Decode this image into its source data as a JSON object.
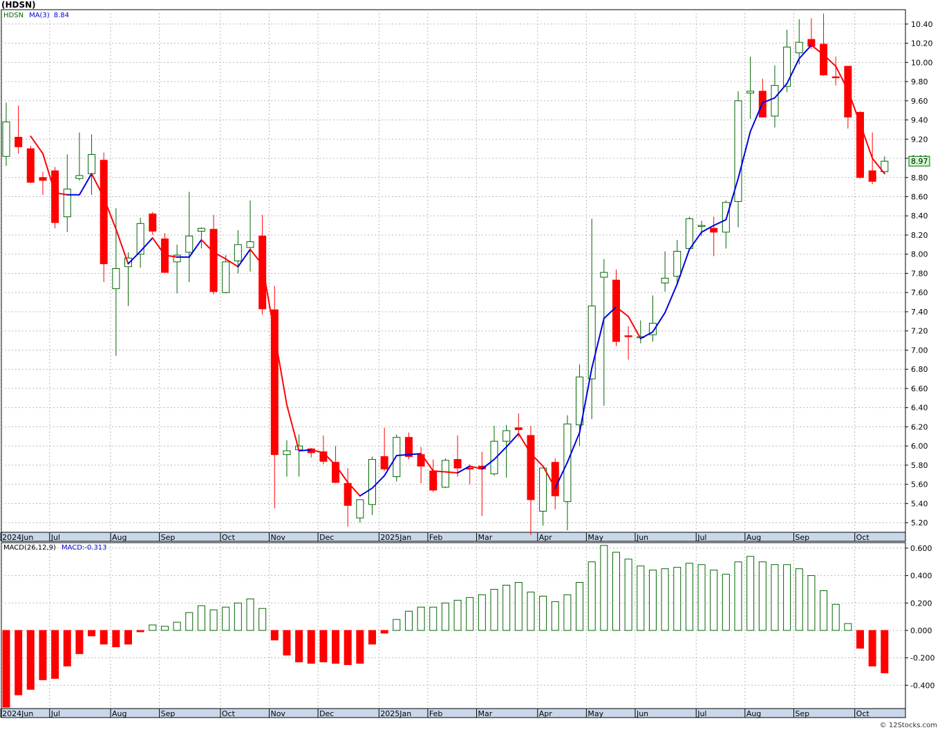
{
  "title": "(HDSN)",
  "legend": {
    "symbol": "HDSN",
    "ma_label": "MA(3)",
    "ma_value": "8.84",
    "macd_params": "MACD(26,12,9)",
    "macd_value": "MACD:-0.313"
  },
  "last_price_tag": "8.97",
  "credit": "© 12Stocks.com",
  "colors": {
    "up": "#006600",
    "down": "#ff0000",
    "ma_up": "#0000dd",
    "ma_down": "#ff0000",
    "axis_band": "#c8d8ea",
    "tag_bg": "#ccffcc"
  },
  "chart_data": [
    {
      "type": "candlestick",
      "interval": "weekly",
      "ylim": [
        5.1,
        10.55
      ],
      "y_ticks": [
        "5.20",
        "5.40",
        "5.60",
        "5.80",
        "6.00",
        "6.20",
        "6.40",
        "6.60",
        "6.80",
        "7.00",
        "7.20",
        "7.40",
        "7.60",
        "7.80",
        "8.00",
        "8.20",
        "8.40",
        "8.60",
        "8.80",
        "9.00",
        "9.20",
        "9.40",
        "9.60",
        "9.80",
        "10.00",
        "10.20",
        "10.40"
      ],
      "x_labels": [
        "2024Jun",
        "Jul",
        "Aug",
        "Sep",
        "Oct",
        "Nov",
        "Dec",
        "2025Jan",
        "Feb",
        "Mar",
        "Apr",
        "May",
        "Jun",
        "Jul",
        "Aug",
        "Sep",
        "Oct"
      ],
      "x_label_weeks": [
        0,
        4,
        9,
        13,
        18,
        22,
        26,
        31,
        35,
        39,
        44,
        48,
        52,
        57,
        61,
        65,
        70
      ],
      "grid": true,
      "ohlc": [
        [
          9.02,
          9.58,
          8.92,
          9.38
        ],
        [
          9.22,
          9.55,
          9.05,
          9.12
        ],
        [
          9.1,
          9.13,
          8.74,
          8.75
        ],
        [
          8.8,
          8.86,
          8.62,
          8.77
        ],
        [
          8.87,
          8.91,
          8.27,
          8.33
        ],
        [
          8.39,
          9.04,
          8.23,
          8.68
        ],
        [
          8.79,
          9.27,
          8.77,
          8.82
        ],
        [
          8.84,
          9.25,
          8.62,
          9.04
        ],
        [
          8.98,
          9.06,
          7.71,
          7.9
        ],
        [
          7.64,
          8.48,
          6.94,
          7.85
        ],
        [
          7.87,
          8.02,
          7.46,
          7.96
        ],
        [
          8.0,
          8.38,
          7.86,
          8.32
        ],
        [
          8.42,
          8.44,
          8.2,
          8.24
        ],
        [
          8.16,
          8.22,
          7.81,
          7.81
        ],
        [
          7.92,
          8.1,
          7.59,
          7.99
        ],
        [
          8.02,
          8.65,
          7.71,
          8.19
        ],
        [
          8.24,
          8.28,
          8.06,
          8.27
        ],
        [
          8.26,
          8.41,
          7.58,
          7.61
        ],
        [
          7.6,
          7.99,
          7.59,
          7.92
        ],
        [
          7.93,
          8.25,
          7.8,
          8.1
        ],
        [
          8.07,
          8.56,
          7.82,
          8.13
        ],
        [
          8.19,
          8.41,
          7.37,
          7.43
        ],
        [
          7.42,
          7.67,
          5.35,
          5.91
        ],
        [
          5.91,
          6.06,
          5.68,
          5.95
        ],
        [
          5.96,
          6.12,
          5.68,
          6.0
        ],
        [
          5.97,
          5.98,
          5.88,
          5.93
        ],
        [
          5.94,
          6.11,
          5.81,
          5.84
        ],
        [
          5.83,
          6.0,
          5.61,
          5.62
        ],
        [
          5.61,
          5.77,
          5.16,
          5.38
        ],
        [
          5.25,
          5.44,
          5.2,
          5.44
        ],
        [
          5.39,
          5.89,
          5.28,
          5.86
        ],
        [
          5.89,
          6.19,
          5.74,
          5.76
        ],
        [
          5.68,
          6.12,
          5.63,
          6.09
        ],
        [
          6.09,
          6.14,
          5.86,
          5.89
        ],
        [
          5.91,
          5.99,
          5.61,
          5.79
        ],
        [
          5.74,
          5.86,
          5.52,
          5.54
        ],
        [
          5.57,
          5.87,
          5.56,
          5.85
        ],
        [
          5.86,
          6.11,
          5.68,
          5.77
        ],
        [
          5.77,
          5.81,
          5.6,
          5.76
        ],
        [
          5.79,
          5.94,
          5.27,
          5.76
        ],
        [
          5.71,
          6.21,
          5.69,
          6.05
        ],
        [
          6.05,
          6.22,
          5.67,
          6.16
        ],
        [
          6.19,
          6.34,
          6.09,
          6.17
        ],
        [
          6.11,
          6.21,
          5.07,
          5.44
        ],
        [
          5.32,
          5.77,
          5.17,
          5.77
        ],
        [
          5.83,
          5.87,
          5.34,
          5.48
        ],
        [
          5.42,
          6.32,
          5.12,
          6.23
        ],
        [
          6.22,
          6.85,
          6.0,
          6.72
        ],
        [
          6.7,
          8.37,
          6.28,
          7.46
        ],
        [
          7.76,
          7.95,
          6.42,
          7.81
        ],
        [
          7.73,
          7.84,
          7.04,
          7.09
        ],
        [
          7.15,
          7.25,
          6.9,
          7.14
        ],
        [
          7.14,
          7.31,
          7.07,
          7.14
        ],
        [
          7.16,
          7.57,
          7.09,
          7.28
        ],
        [
          7.7,
          8.03,
          7.61,
          7.75
        ],
        [
          7.77,
          8.15,
          7.69,
          8.03
        ],
        [
          8.06,
          8.39,
          8.03,
          8.37
        ],
        [
          8.3,
          8.35,
          8.19,
          8.3
        ],
        [
          8.27,
          8.39,
          7.98,
          8.23
        ],
        [
          8.23,
          8.56,
          8.06,
          8.54
        ],
        [
          8.55,
          9.7,
          8.28,
          9.6
        ],
        [
          9.68,
          10.06,
          9.41,
          9.7
        ],
        [
          9.7,
          9.83,
          9.43,
          9.43
        ],
        [
          9.44,
          9.97,
          9.32,
          9.76
        ],
        [
          9.75,
          10.34,
          9.69,
          10.16
        ],
        [
          10.1,
          10.45,
          9.98,
          10.21
        ],
        [
          10.24,
          10.46,
          10.14,
          10.17
        ],
        [
          10.19,
          10.51,
          9.86,
          9.87
        ],
        [
          9.85,
          10.06,
          9.76,
          9.84
        ],
        [
          9.96,
          9.96,
          9.31,
          9.43
        ],
        [
          9.48,
          9.49,
          8.79,
          8.8
        ],
        [
          8.87,
          9.27,
          8.73,
          8.76
        ],
        [
          8.86,
          9.02,
          8.84,
          8.97
        ]
      ],
      "ma3": [
        null,
        null,
        9.23,
        9.05,
        8.64,
        8.62,
        8.62,
        8.84,
        8.59,
        8.26,
        7.9,
        8.03,
        8.17,
        7.99,
        7.97,
        7.97,
        8.15,
        8.02,
        7.95,
        7.87,
        8.05,
        7.89,
        7.16,
        6.43,
        5.95,
        5.96,
        5.93,
        5.8,
        5.62,
        5.48,
        5.56,
        5.69,
        5.9,
        5.91,
        5.92,
        5.74,
        5.73,
        5.72,
        5.79,
        5.76,
        5.86,
        5.99,
        6.13,
        5.92,
        5.79,
        5.56,
        5.83,
        6.14,
        6.81,
        7.33,
        7.45,
        7.35,
        7.12,
        7.19,
        7.39,
        7.69,
        8.05,
        8.23,
        8.3,
        8.36,
        8.79,
        9.28,
        9.58,
        9.63,
        9.78,
        10.04,
        10.18,
        10.08,
        9.96,
        9.71,
        9.36,
        9.0,
        8.84
      ]
    },
    {
      "type": "bar",
      "title": "MACD(26,12,9)",
      "ylim": [
        -0.57,
        0.64
      ],
      "y_ticks": [
        "-0.400",
        "-0.200",
        "0.000",
        "0.200",
        "0.400",
        "0.600"
      ],
      "values": [
        -0.56,
        -0.47,
        -0.43,
        -0.36,
        -0.35,
        -0.26,
        -0.17,
        -0.04,
        -0.1,
        -0.12,
        -0.1,
        -0.01,
        0.04,
        0.03,
        0.06,
        0.13,
        0.18,
        0.15,
        0.17,
        0.2,
        0.23,
        0.16,
        -0.07,
        -0.18,
        -0.23,
        -0.24,
        -0.23,
        -0.24,
        -0.25,
        -0.24,
        -0.1,
        -0.02,
        0.08,
        0.14,
        0.17,
        0.17,
        0.2,
        0.22,
        0.24,
        0.26,
        0.3,
        0.33,
        0.35,
        0.28,
        0.25,
        0.21,
        0.26,
        0.35,
        0.5,
        0.62,
        0.57,
        0.52,
        0.47,
        0.44,
        0.45,
        0.46,
        0.49,
        0.48,
        0.44,
        0.41,
        0.5,
        0.54,
        0.5,
        0.48,
        0.48,
        0.45,
        0.4,
        0.29,
        0.19,
        0.05,
        -0.13,
        -0.26,
        -0.31
      ]
    }
  ]
}
